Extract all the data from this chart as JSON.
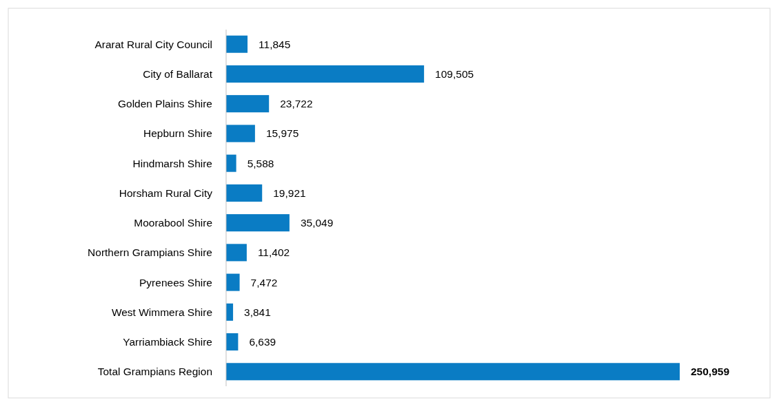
{
  "chart_data": {
    "type": "bar",
    "orientation": "horizontal",
    "categories": [
      "Ararat Rural City Council",
      "City of Ballarat",
      "Golden Plains Shire",
      "Hepburn Shire",
      "Hindmarsh Shire",
      "Horsham Rural City",
      "Moorabool Shire",
      "Northern Grampians Shire",
      "Pyrenees Shire",
      "West Wimmera Shire",
      "Yarriambiack Shire",
      "Total Grampians Region"
    ],
    "values": [
      11845,
      109505,
      23722,
      15975,
      5588,
      19921,
      35049,
      11402,
      7472,
      3841,
      6639,
      250959
    ],
    "value_labels": [
      "11,845",
      "109,505",
      "23,722",
      "15,975",
      "5,588",
      "19,921",
      "35,049",
      "11,402",
      "7,472",
      "3,841",
      "6,639",
      "250,959"
    ],
    "color": "#0a7cc4",
    "tick_labels": "y"
  }
}
